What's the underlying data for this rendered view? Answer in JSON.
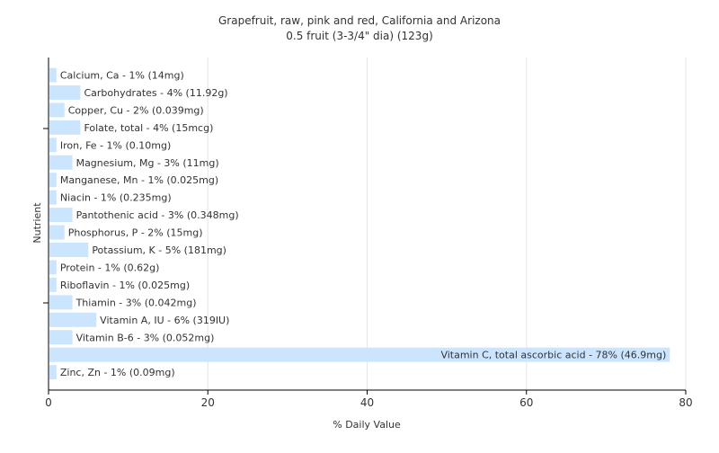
{
  "chart_data": {
    "type": "bar",
    "orientation": "horizontal",
    "title": "Grapefruit, raw, pink and red, California and Arizona",
    "subtitle": "0.5 fruit (3-3/4\" dia) (123g)",
    "xlabel": "% Daily Value",
    "ylabel": "Nutrient",
    "xlim": [
      0,
      80
    ],
    "xticks": [
      0,
      20,
      40,
      60,
      80
    ],
    "grid": true,
    "bar_color": "#cce5ff",
    "categories": [
      "Calcium, Ca",
      "Carbohydrates",
      "Copper, Cu",
      "Folate, total",
      "Iron, Fe",
      "Magnesium, Mg",
      "Manganese, Mn",
      "Niacin",
      "Pantothenic acid",
      "Phosphorus, P",
      "Potassium, K",
      "Protein",
      "Riboflavin",
      "Thiamin",
      "Vitamin A, IU",
      "Vitamin B-6",
      "Vitamin C, total ascorbic acid",
      "Zinc, Zn"
    ],
    "values": [
      1,
      4,
      2,
      4,
      1,
      3,
      1,
      1,
      3,
      2,
      5,
      1,
      1,
      3,
      6,
      3,
      78,
      1
    ],
    "labels": [
      "Calcium, Ca - 1% (14mg)",
      "Carbohydrates - 4% (11.92g)",
      "Copper, Cu - 2% (0.039mg)",
      "Folate, total - 4% (15mcg)",
      "Iron, Fe - 1% (0.10mg)",
      "Magnesium, Mg - 3% (11mg)",
      "Manganese, Mn - 1% (0.025mg)",
      "Niacin - 1% (0.235mg)",
      "Pantothenic acid - 3% (0.348mg)",
      "Phosphorus, P - 2% (15mg)",
      "Potassium, K - 5% (181mg)",
      "Protein - 1% (0.62g)",
      "Riboflavin - 1% (0.025mg)",
      "Thiamin - 3% (0.042mg)",
      "Vitamin A, IU - 6% (319IU)",
      "Vitamin B-6 - 3% (0.052mg)",
      "Vitamin C, total ascorbic acid - 78% (46.9mg)",
      "Zinc, Zn - 1% (0.09mg)"
    ]
  }
}
